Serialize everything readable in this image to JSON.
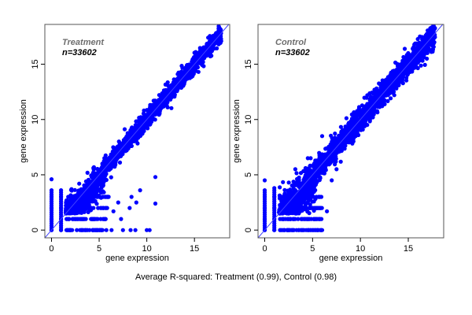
{
  "chart_data": [
    {
      "type": "scatter",
      "title": "Treatment",
      "annotation": "n=33602",
      "n": 33602,
      "xlabel": "gene expression",
      "ylabel": "gene expression",
      "xlim": [
        -0.7,
        18.7
      ],
      "ylim": [
        -0.7,
        18.6
      ],
      "xticks": [
        0,
        5,
        10,
        15
      ],
      "yticks": [
        0,
        5,
        10,
        15
      ],
      "identity_line": true,
      "point_color": "#0000ff",
      "line_color": "#4040ff",
      "cluster": {
        "x_range": [
          1.5,
          17.8
        ],
        "spread": 0.55
      },
      "outliers": [
        [
          0,
          0
        ],
        [
          0,
          1
        ],
        [
          0,
          2
        ],
        [
          0,
          3
        ],
        [
          0,
          4.6
        ],
        [
          1,
          0
        ],
        [
          1,
          1
        ],
        [
          1,
          2
        ],
        [
          1,
          3
        ],
        [
          2,
          0
        ],
        [
          3,
          0
        ],
        [
          4,
          0
        ],
        [
          5,
          0
        ],
        [
          6.3,
          0
        ],
        [
          7.5,
          0
        ],
        [
          8.3,
          0
        ],
        [
          8.8,
          0
        ],
        [
          10,
          0
        ],
        [
          10.3,
          0
        ],
        [
          6.5,
          1.7
        ],
        [
          7,
          2.5
        ],
        [
          7.3,
          1
        ],
        [
          8.4,
          3
        ],
        [
          8.9,
          2.5
        ],
        [
          10.9,
          4.8
        ],
        [
          10.9,
          2.4
        ],
        [
          9.3,
          3.6
        ],
        [
          8.2,
          2
        ]
      ]
    },
    {
      "type": "scatter",
      "title": "Control",
      "annotation": "n=33602",
      "n": 33602,
      "xlabel": "gene expression",
      "ylabel": "gene expression",
      "xlim": [
        -0.7,
        18.7
      ],
      "ylim": [
        -0.7,
        18.6
      ],
      "xticks": [
        0,
        5,
        10,
        15
      ],
      "yticks": [
        0,
        5,
        10,
        15
      ],
      "identity_line": true,
      "point_color": "#0000ff",
      "line_color": "#4040ff",
      "cluster": {
        "x_range": [
          1.5,
          17.8
        ],
        "spread": 0.75
      },
      "outliers": [
        [
          0,
          0
        ],
        [
          0,
          1
        ],
        [
          0,
          2
        ],
        [
          0,
          3
        ],
        [
          0,
          4.5
        ],
        [
          1,
          0
        ],
        [
          1,
          1
        ],
        [
          1,
          2
        ],
        [
          1,
          3
        ],
        [
          1,
          3.8
        ],
        [
          2,
          0
        ],
        [
          3,
          0
        ],
        [
          4,
          0
        ],
        [
          5,
          0
        ],
        [
          5.5,
          0
        ],
        [
          6,
          0
        ],
        [
          3.5,
          2
        ],
        [
          4,
          2
        ],
        [
          5.7,
          1
        ],
        [
          6.5,
          1.7
        ],
        [
          4.5,
          6.5
        ],
        [
          6,
          8.5
        ],
        [
          9.5,
          8.5
        ],
        [
          3.2,
          5.5
        ],
        [
          5.5,
          6.3
        ],
        [
          7.5,
          5.5
        ],
        [
          7,
          4.5
        ],
        [
          5.2,
          4
        ]
      ]
    }
  ],
  "caption": "Average R-squared: Treatment (0.99), Control (0.98)"
}
